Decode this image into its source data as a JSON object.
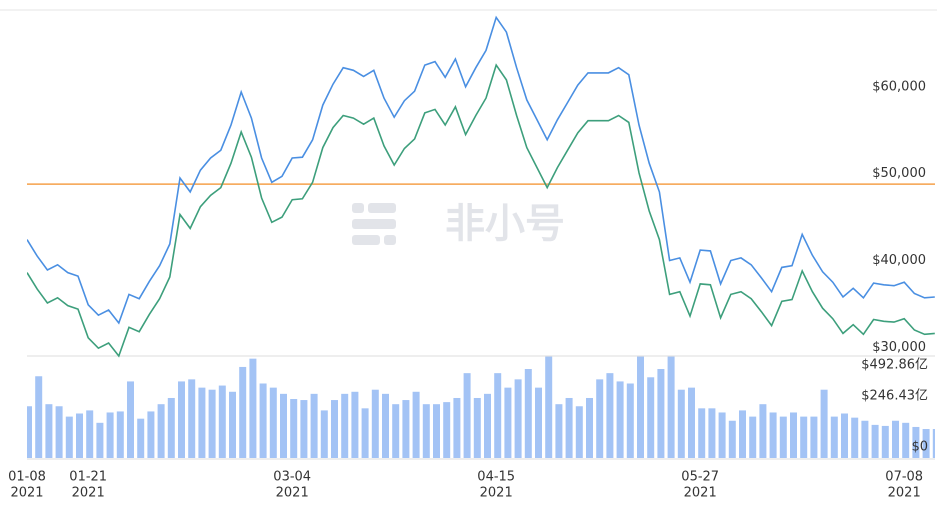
{
  "chart_data": {
    "type": "line",
    "watermark": "非小号",
    "categories": [
      "01-08",
      null,
      null,
      null,
      null,
      null,
      "01-21",
      null,
      null,
      null,
      null,
      null,
      null,
      null,
      null,
      null,
      null,
      null,
      null,
      null,
      null,
      null,
      null,
      null,
      null,
      null,
      "03-04",
      null,
      null,
      null,
      null,
      null,
      null,
      null,
      null,
      null,
      null,
      null,
      null,
      null,
      null,
      null,
      null,
      null,
      null,
      null,
      "04-15",
      null,
      null,
      null,
      null,
      null,
      null,
      null,
      null,
      null,
      null,
      null,
      null,
      null,
      null,
      null,
      null,
      null,
      null,
      null,
      "05-27",
      null,
      null,
      null,
      null,
      null,
      null,
      null,
      null,
      null,
      null,
      null,
      null,
      null,
      null,
      null,
      null,
      null,
      null,
      null,
      "07-08",
      null,
      null,
      null
    ],
    "category_years": [
      "2021",
      null,
      null,
      null,
      null,
      null,
      "2021",
      null,
      null,
      null,
      null,
      null,
      null,
      null,
      null,
      null,
      null,
      null,
      null,
      null,
      null,
      null,
      null,
      null,
      null,
      null,
      "2021",
      null,
      null,
      null,
      null,
      null,
      null,
      null,
      null,
      null,
      null,
      null,
      null,
      null,
      null,
      null,
      null,
      null,
      null,
      null,
      "2021",
      null,
      null,
      null,
      null,
      null,
      null,
      null,
      null,
      null,
      null,
      null,
      null,
      null,
      null,
      null,
      null,
      null,
      null,
      null,
      "2021",
      null,
      null,
      null,
      null,
      null,
      null,
      null,
      null,
      null,
      null,
      null,
      null,
      null,
      null,
      null,
      null,
      null,
      null,
      null,
      "2021",
      null,
      null,
      null
    ],
    "series": [
      {
        "color": "#4a8fe2",
        "values": [
          42400,
          40500,
          38900,
          39500,
          38600,
          38200,
          34900,
          33700,
          34300,
          32800,
          36100,
          35600,
          37600,
          39400,
          41900,
          49500,
          47900,
          50400,
          51800,
          52700,
          55600,
          59400,
          56400,
          51800,
          49000,
          49700,
          51800,
          51900,
          53900,
          57900,
          60300,
          62200,
          61900,
          61200,
          61900,
          58700,
          56500,
          58400,
          59500,
          62500,
          62900,
          61100,
          63200,
          60000,
          62200,
          64200,
          68000,
          66300,
          62200,
          58500,
          56200,
          53900,
          56200,
          58200,
          60200,
          61600,
          61600,
          61600,
          62200,
          61400,
          55600,
          51200,
          47900,
          40000,
          40300,
          37500,
          41200,
          41100,
          37300,
          40000,
          40300,
          39500,
          38000,
          36400,
          39200,
          39400,
          43000,
          40600,
          38700,
          37500,
          35800,
          36800,
          35700,
          37400,
          37200,
          37100,
          37500,
          36200,
          35700,
          35800
        ]
      },
      {
        "color": "#3d9f7c",
        "values": [
          38600,
          36700,
          35100,
          35700,
          34800,
          34400,
          31100,
          29900,
          30500,
          29000,
          32300,
          31800,
          33800,
          35600,
          38100,
          45300,
          43700,
          46200,
          47500,
          48400,
          51200,
          54800,
          51900,
          47200,
          44400,
          45000,
          47000,
          47100,
          49000,
          53000,
          55300,
          56700,
          56400,
          55700,
          56400,
          53200,
          51000,
          52900,
          54000,
          57000,
          57400,
          55600,
          57700,
          54500,
          56700,
          58700,
          62500,
          60800,
          56700,
          53000,
          50700,
          48400,
          50700,
          52700,
          54700,
          56100,
          56100,
          56100,
          56700,
          55900,
          50100,
          45700,
          42400,
          36100,
          36400,
          33600,
          37300,
          37200,
          33400,
          36100,
          36400,
          35600,
          34100,
          32500,
          35300,
          35500,
          38800,
          36400,
          34500,
          33300,
          31600,
          32600,
          31500,
          33200,
          33000,
          32900,
          33300,
          32000,
          31500,
          31600
        ]
      }
    ],
    "ylim": [
      29000,
      70000
    ],
    "yticks": [
      {
        "value": 30000,
        "label": "$30,000"
      },
      {
        "value": 40000,
        "label": "$40,000"
      },
      {
        "value": 50000,
        "label": "$50,000"
      },
      {
        "value": 60000,
        "label": "$60,000"
      }
    ],
    "reference_line": {
      "value": 48800,
      "color": "#f5a04a"
    },
    "volume": {
      "color": "#a3c3f5",
      "values": [
        250,
        395,
        260,
        250,
        200,
        215,
        230,
        170,
        220,
        225,
        370,
        190,
        225,
        260,
        290,
        370,
        380,
        340,
        330,
        350,
        320,
        440,
        480,
        360,
        340,
        310,
        285,
        280,
        310,
        230,
        280,
        310,
        320,
        240,
        330,
        310,
        260,
        280,
        320,
        260,
        260,
        270,
        290,
        410,
        290,
        310,
        410,
        340,
        380,
        430,
        340,
        490,
        260,
        290,
        250,
        290,
        380,
        410,
        370,
        360,
        490,
        390,
        430,
        490,
        330,
        340,
        240,
        240,
        220,
        180,
        230,
        200,
        260,
        220,
        200,
        220,
        200,
        200,
        330,
        200,
        215,
        195,
        180,
        160,
        155,
        180,
        170,
        150,
        140,
        140
      ],
      "ylim": [
        0,
        492.86
      ],
      "yticks": [
        {
          "value": 0,
          "label": "$0"
        },
        {
          "value": 246.43,
          "label": "$246.43亿"
        },
        {
          "value": 492.86,
          "label": "$492.86亿"
        }
      ]
    },
    "grid": false
  }
}
